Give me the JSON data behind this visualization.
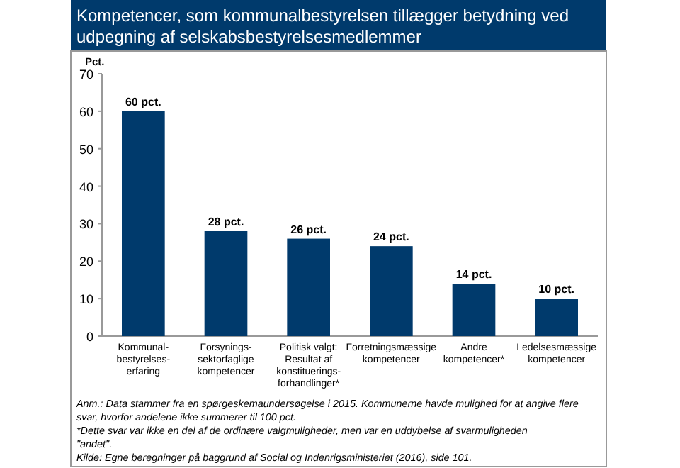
{
  "chart_data": {
    "type": "bar",
    "title": "Kompetencer, som kommunalbestyrelsen tillægger betydning ved udpegning af selskabsbestyrelsesmedlemmer",
    "ylabel": "Pct.",
    "categories": [
      "Kommunal-\nbestyrelses-\nerfaring",
      "Forsynings-\nsektorfaglige\nkompetencer",
      "Politisk valgt:\nResultat af\nkonstituerings-\nforhandlinger*",
      "Forretningsmæssige\nkompetencer",
      "Andre\nkompetencer*",
      "Ledelsesmæssige\nkompetencer"
    ],
    "values": [
      60,
      28,
      26,
      24,
      14,
      10
    ],
    "value_labels": [
      "60 pct.",
      "28 pct.",
      "26 pct.",
      "24 pct.",
      "14 pct.",
      "10 pct."
    ],
    "color": "#003a6c",
    "ylim": [
      0,
      70
    ],
    "yticks": [
      0,
      10,
      20,
      30,
      40,
      50,
      60,
      70
    ],
    "grid": false,
    "annotations": [
      "Anm.: Data stammer fra en spørgeskemaundersøgelse i 2015. Kommunerne havde mulighed for at angive flere svar, hvorfor andelene ikke summerer til 100 pct.",
      "*Dette svar var ikke en del af de ordinære valgmuligheder, men var en uddybelse af svarmuligheden \"andet\".",
      "Kilde: Egne beregninger på baggrund af Social og Indenrigsministeriet (2016), side 101."
    ]
  }
}
